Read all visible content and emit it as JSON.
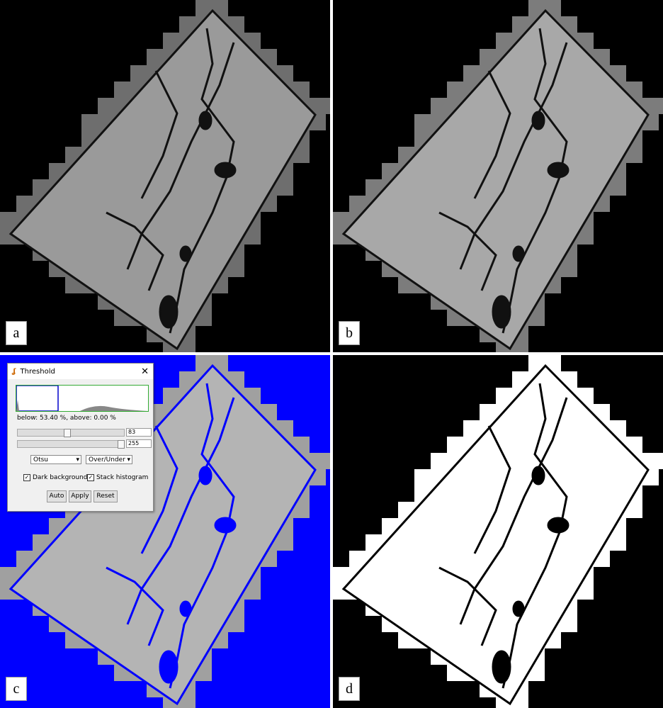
{
  "panels": [
    {
      "label": "a"
    },
    {
      "label": "b"
    },
    {
      "label": "c"
    },
    {
      "label": "d"
    }
  ],
  "threshold_dialog": {
    "title": "Threshold",
    "stats": "below: 53.40 %,  above: 0.00 %",
    "sliders": [
      83,
      255
    ],
    "method": "Otsu",
    "display": "Over/Under",
    "checkboxes": [
      "Dark background",
      "Stack histogram"
    ],
    "buttons": [
      "Auto",
      "Apply",
      "Reset"
    ]
  }
}
